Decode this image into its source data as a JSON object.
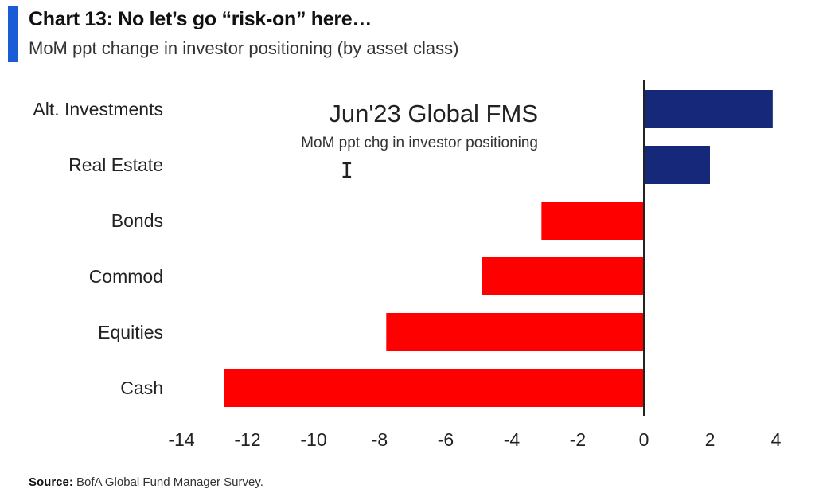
{
  "header": {
    "title": "Chart 13: No let’s go “risk-on” here…",
    "subtitle": "MoM ppt change in investor positioning (by asset class)"
  },
  "overlay": {
    "title": "Jun'23 Global FMS",
    "subtitle": "MoM ppt chg in investor positioning"
  },
  "footer": {
    "source_label": "Source:",
    "source_text": "BofA Global Fund Manager Survey."
  },
  "colors": {
    "positive": "#15287a",
    "negative": "#ff0000",
    "accent": "#1a5bd6",
    "axis": "#222222"
  },
  "chart_data": {
    "type": "bar",
    "orientation": "horizontal",
    "categories": [
      "Alt. Investments",
      "Real Estate",
      "Bonds",
      "Commod",
      "Equities",
      "Cash"
    ],
    "values": [
      3.9,
      2.0,
      -3.1,
      -4.9,
      -7.8,
      -12.7
    ],
    "xlim": [
      -14,
      4
    ],
    "xticks": [
      -14,
      -12,
      -10,
      -8,
      -6,
      -4,
      -2,
      0,
      2,
      4
    ],
    "grid": false,
    "legend": "none"
  }
}
